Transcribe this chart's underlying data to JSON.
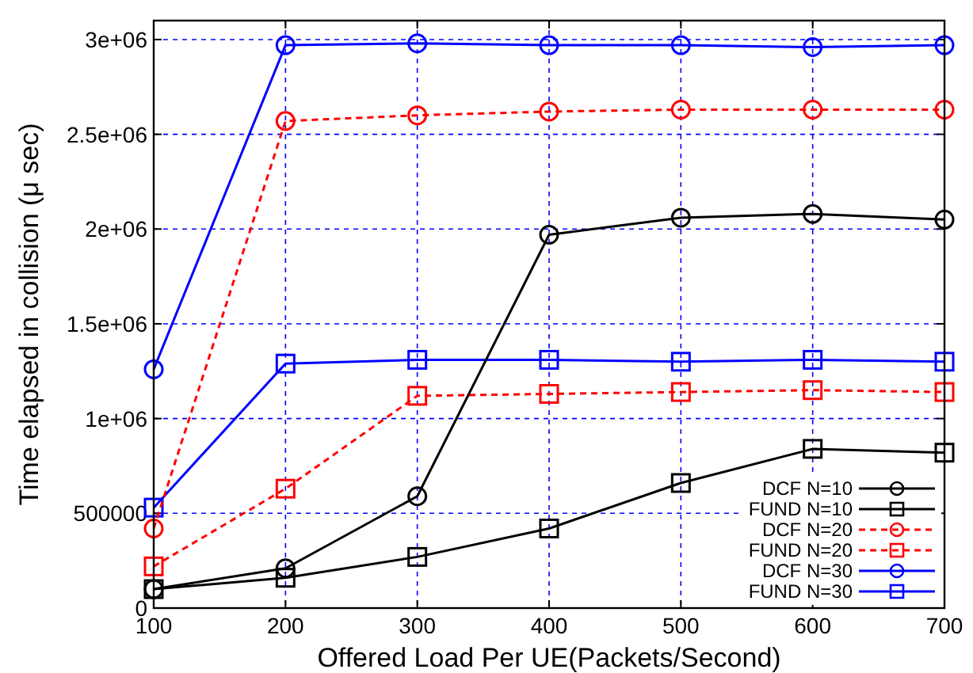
{
  "chart_data": {
    "type": "line",
    "xlabel": "Offered Load Per UE(Packets/Second)",
    "ylabel": "Time elapsed in collision (μ sec)",
    "x": [
      100,
      200,
      300,
      400,
      500,
      600,
      700
    ],
    "xlim": [
      100,
      700
    ],
    "xticks": [
      100,
      200,
      300,
      400,
      500,
      600,
      700
    ],
    "ylim": [
      0,
      3100000
    ],
    "yticks": [
      0,
      500000,
      {
        "value": 1000000,
        "label": "1e+06"
      },
      {
        "value": 1500000,
        "label": "1.5e+06"
      },
      {
        "value": 2000000,
        "label": "2e+06"
      },
      {
        "value": 2500000,
        "label": "2.5e+06"
      },
      {
        "value": 3000000,
        "label": "3e+06"
      }
    ],
    "grid": true,
    "legend": "bottom right",
    "series": [
      {
        "name": "DCF N=10",
        "color": "#000000",
        "marker": "circle",
        "line_style": "solid",
        "values": [
          100000,
          210000,
          590000,
          1970000,
          2060000,
          2080000,
          2050000
        ]
      },
      {
        "name": "FUND N=10",
        "color": "#000000",
        "marker": "square",
        "line_style": "solid",
        "values": [
          100000,
          160000,
          270000,
          420000,
          660000,
          840000,
          820000
        ]
      },
      {
        "name": "DCF N=20",
        "color": "#ff0000",
        "marker": "circle",
        "line_style": "dashed",
        "values": [
          420000,
          2570000,
          2600000,
          2620000,
          2630000,
          2630000,
          2630000
        ]
      },
      {
        "name": "FUND N=20",
        "color": "#ff0000",
        "marker": "square",
        "line_style": "dashed",
        "values": [
          220000,
          630000,
          1120000,
          1130000,
          1140000,
          1150000,
          1140000
        ]
      },
      {
        "name": "DCF N=30",
        "color": "#0000ff",
        "marker": "circle",
        "line_style": "solid",
        "values": [
          1260000,
          2970000,
          2980000,
          2970000,
          2970000,
          2960000,
          2970000
        ]
      },
      {
        "name": "FUND N=30",
        "color": "#0000ff",
        "marker": "square",
        "line_style": "solid",
        "values": [
          530000,
          1290000,
          1310000,
          1310000,
          1300000,
          1310000,
          1300000
        ]
      }
    ]
  }
}
